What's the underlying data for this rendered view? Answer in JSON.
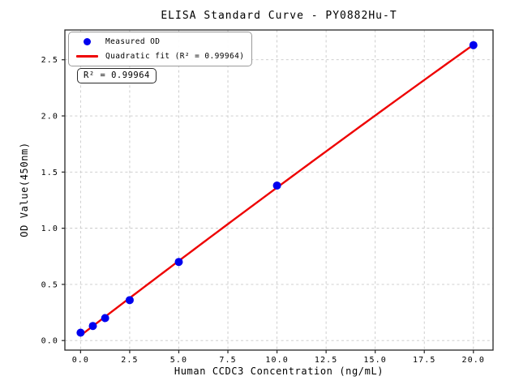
{
  "chart_data": {
    "type": "scatter",
    "title": "ELISA Standard Curve - PY0882Hu-T",
    "xlabel": "Human CCDC3 Concentration (ng/mL)",
    "ylabel": "OD Value(450nm)",
    "xlim": [
      -0.8,
      21.0
    ],
    "ylim": [
      -0.085,
      2.765
    ],
    "xticks": [
      0,
      2.5,
      5,
      7.5,
      10,
      12.5,
      15,
      17.5,
      20
    ],
    "xtick_labels": [
      "0.0",
      "2.5",
      "5.0",
      "7.5",
      "10.0",
      "12.5",
      "15.0",
      "17.5",
      "20.0"
    ],
    "yticks": [
      0,
      0.5,
      1,
      1.5,
      2,
      2.5
    ],
    "ytick_labels": [
      "0.0",
      "0.5",
      "1.0",
      "1.5",
      "2.0",
      "2.5"
    ],
    "grid": true,
    "legend_position": "upper left",
    "series": [
      {
        "name": "Measured OD",
        "type": "scatter",
        "marker": "circle",
        "color": "#0000ee",
        "x": [
          0,
          0.625,
          1.25,
          2.5,
          5,
          10,
          20
        ],
        "y": [
          0.07,
          0.13,
          0.2,
          0.36,
          0.7,
          1.38,
          2.63
        ]
      },
      {
        "name": "Quadratic fit (R² = 0.99964)",
        "type": "line",
        "fit": "quadratic",
        "fit_domain": [
          0,
          20
        ],
        "color": "#ee0000"
      }
    ],
    "annotation": "R² = 0.99964",
    "r_squared": 0.99964,
    "colors": {
      "background": "#ffffff",
      "grid": "#c8c8c8",
      "axis": "#262626",
      "scatter": "#0000ee",
      "fit_line": "#ee0000"
    }
  }
}
